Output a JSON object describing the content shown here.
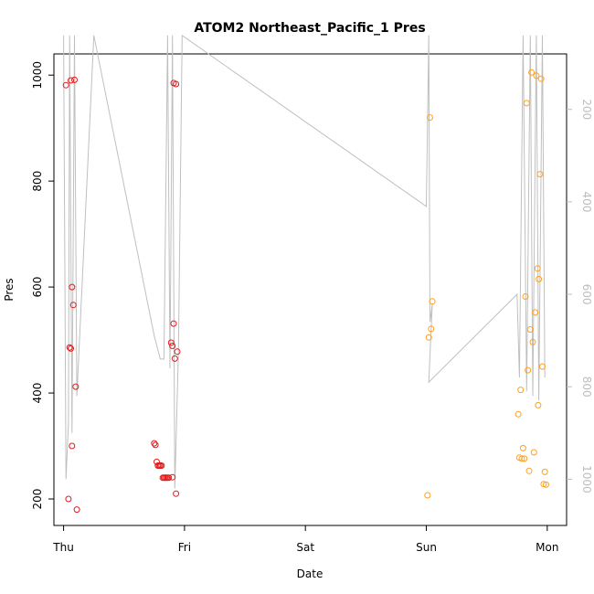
{
  "chart_data": {
    "type": "scatter",
    "title": "ATOM2 Northeast_Pacific_1 Pres",
    "xlabel": "Date",
    "ylabel": "Pres",
    "x_ticks": [
      "Thu",
      "Fri",
      "Sat",
      "Sun",
      "Mon"
    ],
    "xlim": [
      -0.08,
      4.16
    ],
    "ylim": [
      150,
      1040
    ],
    "y_ticks": [
      200,
      400,
      600,
      800,
      1000
    ],
    "y2_ticks": [
      200,
      400,
      600,
      800,
      1000
    ],
    "y2lim": [
      80,
      1100
    ],
    "grid": false,
    "colors": {
      "series_a": "#e31a1c",
      "series_b": "#ff9f20",
      "line": "#bfbfbf"
    },
    "series": [
      {
        "points": [
          [
            0.02,
            981
          ],
          [
            0.05,
            486
          ],
          [
            0.04,
            200
          ],
          [
            0.06,
            484
          ],
          [
            0.06,
            990
          ],
          [
            0.07,
            600
          ],
          [
            0.07,
            300
          ],
          [
            0.08,
            566
          ],
          [
            0.09,
            991
          ],
          [
            0.1,
            412
          ],
          [
            0.11,
            180
          ],
          [
            0.75,
            305
          ],
          [
            0.76,
            302
          ],
          [
            0.77,
            270
          ],
          [
            0.78,
            263
          ],
          [
            0.79,
            263
          ],
          [
            0.8,
            263
          ],
          [
            0.81,
            263
          ],
          [
            0.82,
            240
          ],
          [
            0.83,
            240
          ],
          [
            0.84,
            240
          ],
          [
            0.85,
            240
          ],
          [
            0.86,
            240
          ],
          [
            0.87,
            240
          ],
          [
            0.9,
            241
          ],
          [
            0.91,
            531
          ],
          [
            0.92,
            465
          ],
          [
            0.93,
            210
          ],
          [
            0.94,
            478
          ],
          [
            0.89,
            495
          ],
          [
            0.9,
            489
          ],
          [
            0.91,
            985
          ],
          [
            0.93,
            983
          ]
        ]
      },
      {
        "points": [
          [
            3.01,
            207
          ],
          [
            3.02,
            505
          ],
          [
            3.03,
            920
          ],
          [
            3.04,
            521
          ],
          [
            3.05,
            573
          ],
          [
            3.76,
            360
          ],
          [
            3.77,
            278
          ],
          [
            3.78,
            406
          ],
          [
            3.79,
            276
          ],
          [
            3.8,
            296
          ],
          [
            3.81,
            276
          ],
          [
            3.82,
            582
          ],
          [
            3.83,
            947
          ],
          [
            3.84,
            443
          ],
          [
            3.85,
            253
          ],
          [
            3.86,
            520
          ],
          [
            3.87,
            1005
          ],
          [
            3.88,
            496
          ],
          [
            3.89,
            288
          ],
          [
            3.9,
            552
          ],
          [
            3.91,
            999
          ],
          [
            3.92,
            635
          ],
          [
            3.925,
            377
          ],
          [
            3.93,
            615
          ],
          [
            3.94,
            813
          ],
          [
            3.95,
            993
          ],
          [
            3.96,
            450
          ],
          [
            3.97,
            228
          ],
          [
            3.98,
            251
          ],
          [
            3.99,
            227
          ]
        ]
      }
    ],
    "trajectory_depth": [
      [
        0.0,
        40
      ],
      [
        0.02,
        1000
      ],
      [
        0.04,
        880
      ],
      [
        0.05,
        40
      ],
      [
        0.07,
        900
      ],
      [
        0.09,
        40
      ],
      [
        0.11,
        820
      ],
      [
        0.25,
        40
      ],
      [
        0.75,
        690
      ],
      [
        0.78,
        720
      ],
      [
        0.8,
        740
      ],
      [
        0.83,
        740
      ],
      [
        0.86,
        40
      ],
      [
        0.88,
        760
      ],
      [
        0.9,
        40
      ],
      [
        0.92,
        1020
      ],
      [
        0.95,
        720
      ],
      [
        0.98,
        40
      ],
      [
        3.0,
        410
      ],
      [
        3.02,
        40
      ],
      [
        3.03,
        660
      ],
      [
        3.05,
        620
      ],
      [
        3.02,
        790
      ],
      [
        3.75,
        600
      ],
      [
        3.77,
        780
      ],
      [
        3.8,
        40
      ],
      [
        3.83,
        810
      ],
      [
        3.86,
        40
      ],
      [
        3.88,
        820
      ],
      [
        3.91,
        40
      ],
      [
        3.93,
        830
      ],
      [
        3.96,
        40
      ],
      [
        3.98,
        780
      ]
    ]
  }
}
